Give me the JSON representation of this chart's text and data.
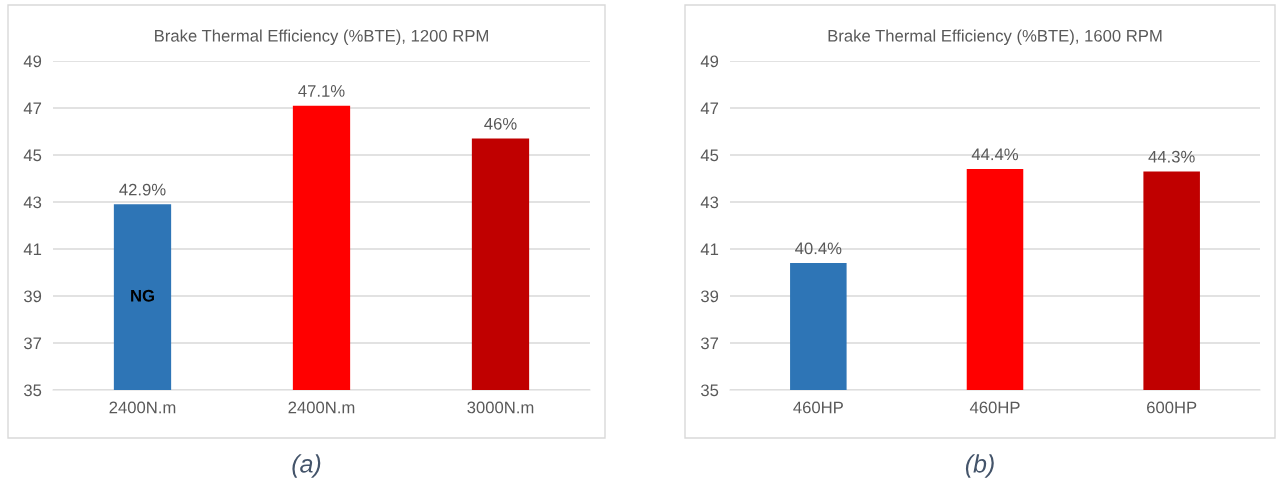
{
  "chart_data": [
    {
      "type": "bar",
      "title": "Brake Thermal Efficiency (%BTE), 1200 RPM",
      "categories": [
        "2400N.m",
        "2400N.m",
        "3000N.m"
      ],
      "values": [
        42.9,
        47.1,
        45.7
      ],
      "colors": [
        "#2e75b6",
        "#ff0000",
        "#c00000"
      ],
      "value_labels": [
        "42.9%",
        "47.1%",
        "46%"
      ],
      "ylim": [
        35,
        49
      ],
      "yticks": [
        35,
        37,
        39,
        41,
        43,
        45,
        47,
        49
      ],
      "grid": "y",
      "annotations": [
        "NG",
        "(a)"
      ]
    },
    {
      "type": "bar",
      "title": "Brake Thermal Efficiency (%BTE), 1600 RPM",
      "categories": [
        "460HP",
        "460HP",
        "600HP"
      ],
      "values": [
        40.4,
        44.4,
        44.3
      ],
      "colors": [
        "#2e75b6",
        "#ff0000",
        "#c00000"
      ],
      "value_labels": [
        "40.4%",
        "44.4%",
        "44.3%"
      ],
      "ylim": [
        35,
        49
      ],
      "yticks": [
        35,
        37,
        39,
        41,
        43,
        45,
        47,
        49
      ],
      "grid": "y",
      "annotations": [
        "(b)"
      ]
    }
  ]
}
